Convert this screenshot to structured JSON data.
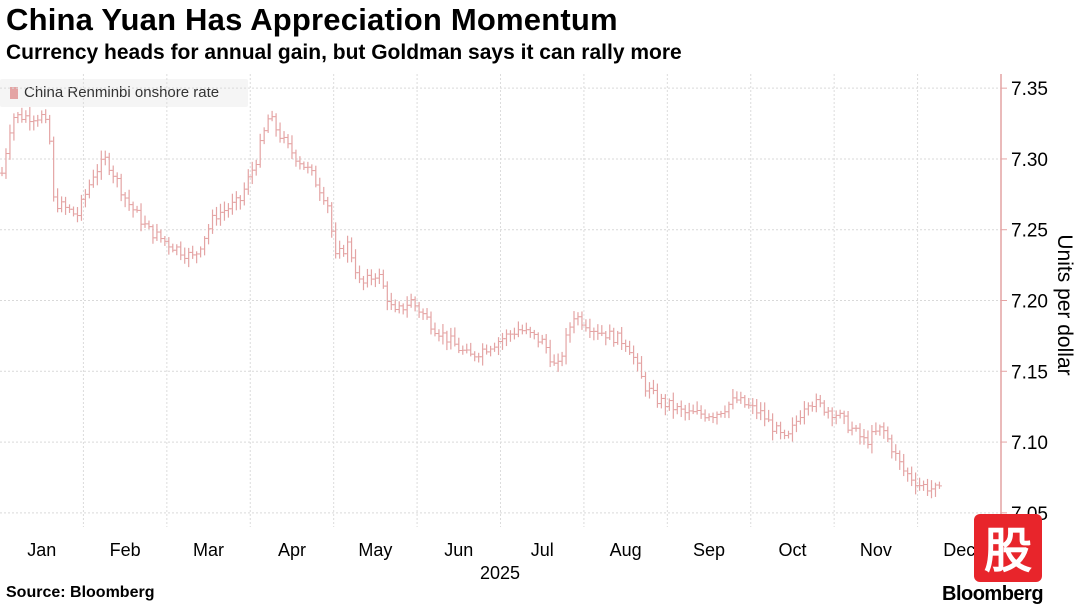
{
  "title": "China Yuan Has Appreciation Momentum",
  "subtitle": "Currency heads for annual gain, but Goldman says it can rally more",
  "source": "Source: Bloomberg",
  "brand": "Bloomberg",
  "stamp_glyph": "股",
  "chart_data": {
    "type": "bar",
    "subtype": "high-low range bars (daily)",
    "legend": [
      "China Renminbi onshore rate"
    ],
    "ylabel": "Units per dollar",
    "xlabel": "2025",
    "ylim": [
      7.04,
      7.36
    ],
    "yticks": [
      7.05,
      7.1,
      7.15,
      7.2,
      7.25,
      7.3,
      7.35
    ],
    "ytick_labels": [
      "7.05",
      "7.10",
      "7.15",
      "7.20",
      "7.25",
      "7.30",
      "7.35"
    ],
    "x_range": [
      0,
      12
    ],
    "months": [
      "Jan",
      "Feb",
      "Mar",
      "Apr",
      "May",
      "Jun",
      "Jul",
      "Aug",
      "Sep",
      "Oct",
      "Nov",
      "Dec"
    ],
    "series": [
      {
        "name": "China Renminbi onshore rate",
        "color": "#e4a4a4",
        "anchors": [
          [
            0.0,
            7.29
          ],
          [
            0.12,
            7.33
          ],
          [
            0.5,
            7.33
          ],
          [
            0.58,
            7.31
          ],
          [
            0.62,
            7.27
          ],
          [
            0.9,
            7.26
          ],
          [
            1.1,
            7.29
          ],
          [
            1.25,
            7.3
          ],
          [
            1.5,
            7.27
          ],
          [
            1.75,
            7.25
          ],
          [
            2.0,
            7.24
          ],
          [
            2.3,
            7.23
          ],
          [
            2.55,
            7.26
          ],
          [
            2.85,
            7.27
          ],
          [
            3.05,
            7.3
          ],
          [
            3.2,
            7.33
          ],
          [
            3.4,
            7.31
          ],
          [
            3.7,
            7.29
          ],
          [
            3.9,
            7.27
          ],
          [
            4.0,
            7.23
          ],
          [
            4.15,
            7.24
          ],
          [
            4.3,
            7.21
          ],
          [
            4.5,
            7.22
          ],
          [
            4.7,
            7.19
          ],
          [
            4.9,
            7.2
          ],
          [
            5.2,
            7.18
          ],
          [
            5.6,
            7.16
          ],
          [
            5.9,
            7.17
          ],
          [
            6.2,
            7.18
          ],
          [
            6.5,
            7.17
          ],
          [
            6.65,
            7.15
          ],
          [
            6.85,
            7.19
          ],
          [
            7.1,
            7.18
          ],
          [
            7.5,
            7.17
          ],
          [
            7.7,
            7.14
          ],
          [
            7.85,
            7.13
          ],
          [
            8.2,
            7.12
          ],
          [
            8.55,
            7.12
          ],
          [
            8.8,
            7.13
          ],
          [
            9.1,
            7.12
          ],
          [
            9.4,
            7.1
          ],
          [
            9.65,
            7.13
          ],
          [
            10.0,
            7.12
          ],
          [
            10.35,
            7.1
          ],
          [
            10.55,
            7.11
          ],
          [
            10.8,
            7.08
          ],
          [
            11.0,
            7.07
          ],
          [
            11.25,
            7.065
          ]
        ]
      }
    ]
  }
}
